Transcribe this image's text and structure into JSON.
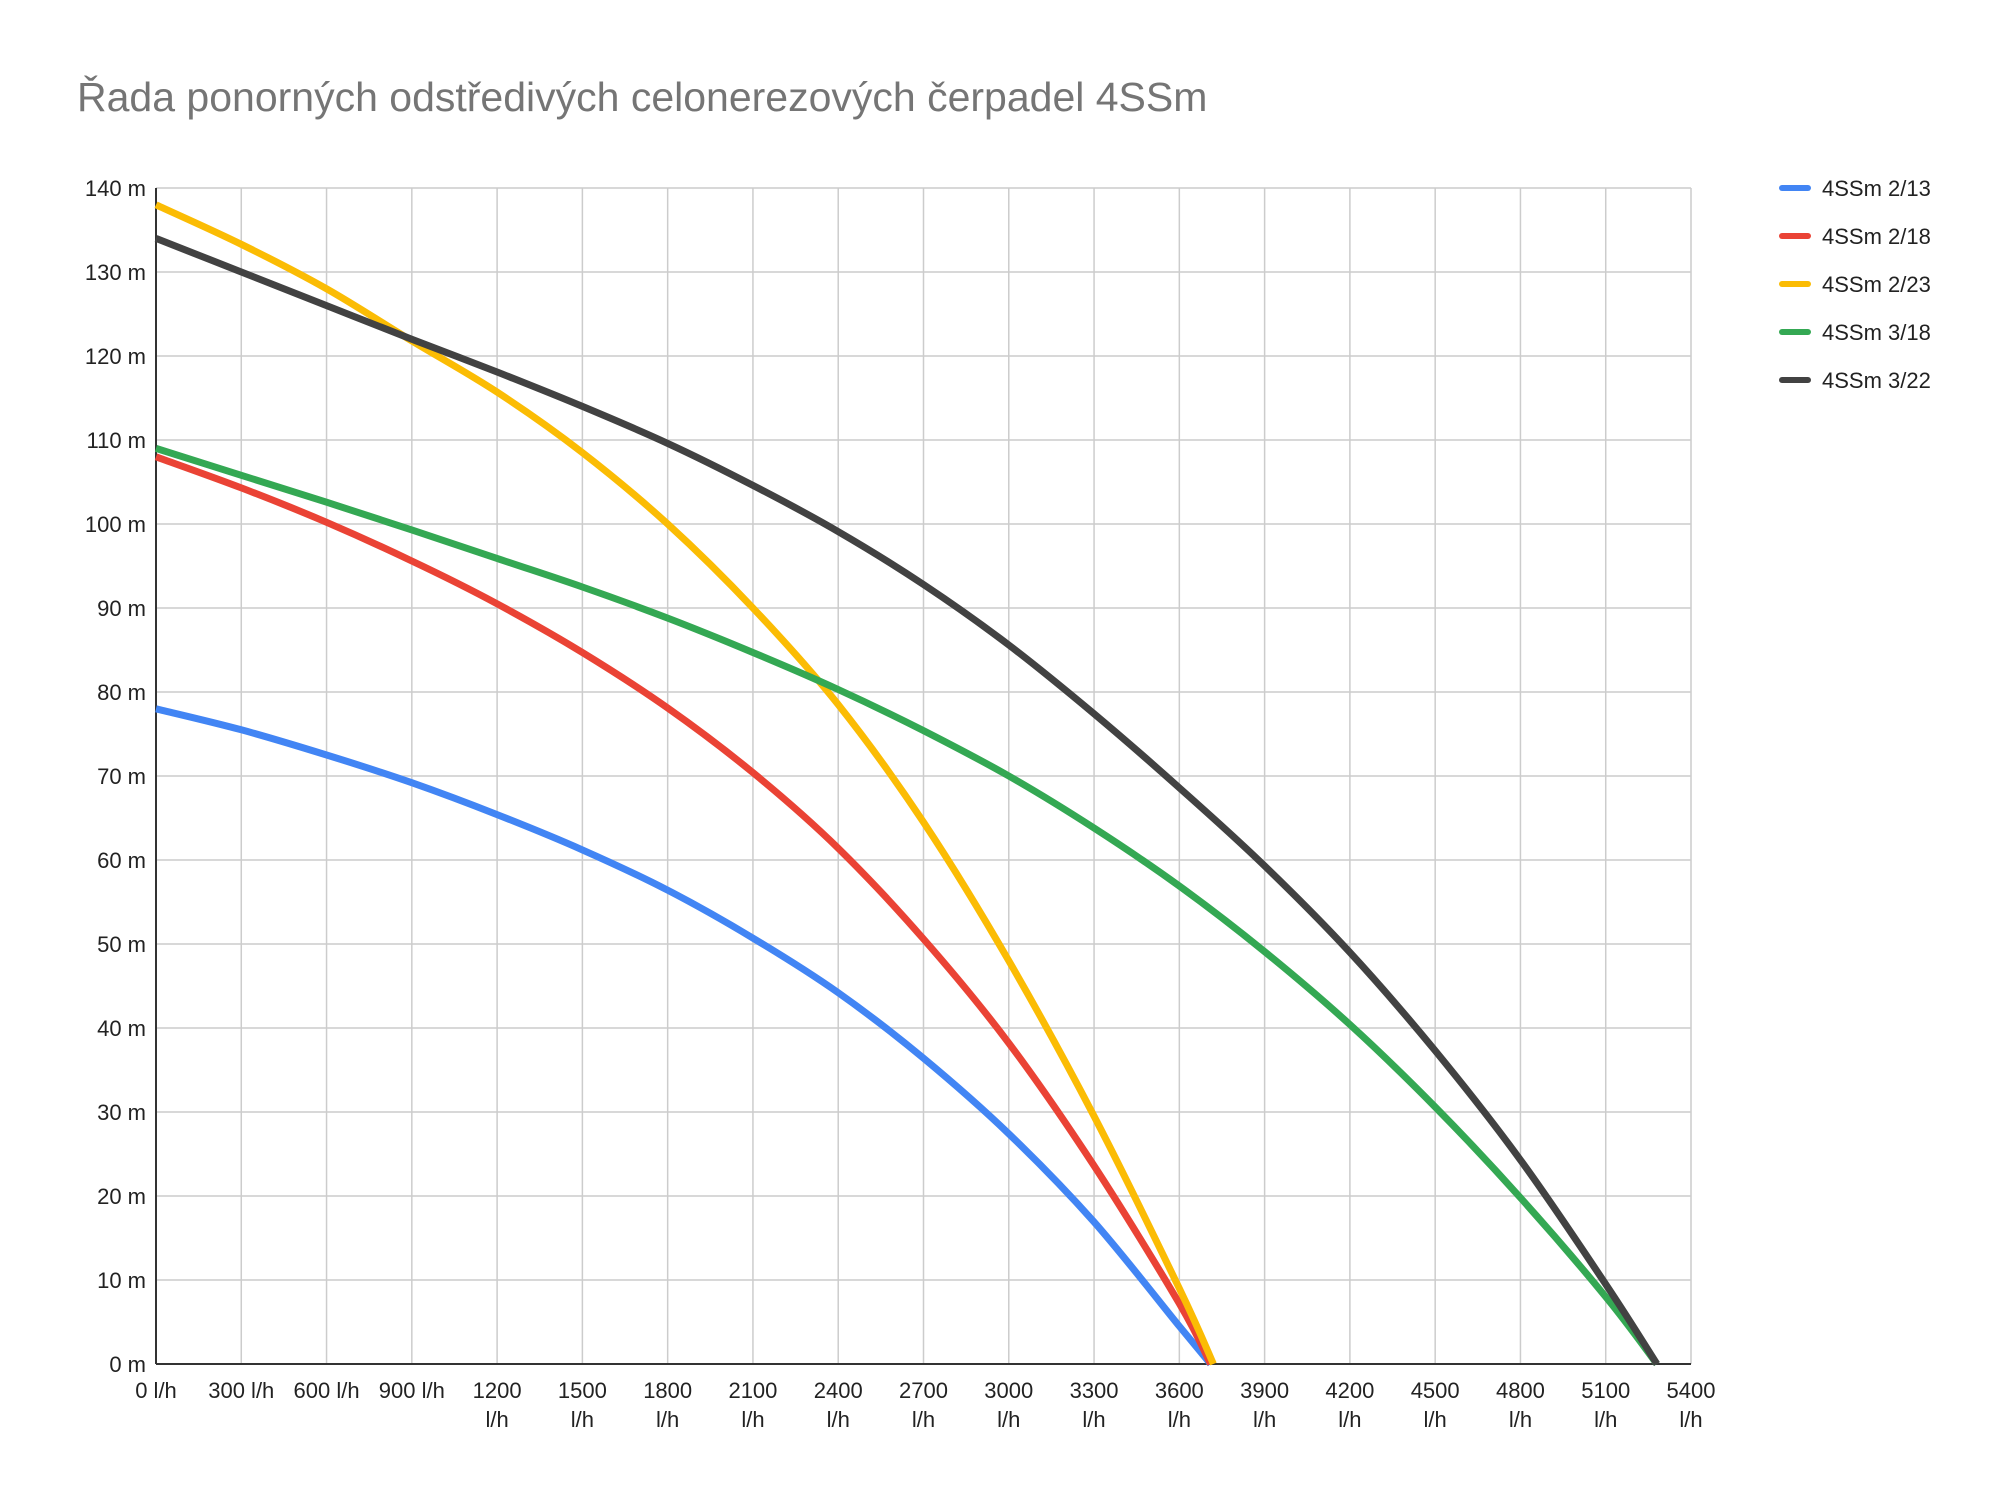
{
  "chart_data": {
    "type": "line",
    "title": "Řada ponorných odstředivých celonerezových čerpadel 4SSm",
    "xlabel": "",
    "ylabel": "",
    "xlim": [
      0,
      5400
    ],
    "ylim": [
      0,
      140
    ],
    "x_ticks": [
      {
        "value": 0,
        "lines": [
          "0 l/h"
        ]
      },
      {
        "value": 300,
        "lines": [
          "300 l/h"
        ]
      },
      {
        "value": 600,
        "lines": [
          "600 l/h"
        ]
      },
      {
        "value": 900,
        "lines": [
          "900 l/h"
        ]
      },
      {
        "value": 1200,
        "lines": [
          "1200",
          "l/h"
        ]
      },
      {
        "value": 1500,
        "lines": [
          "1500",
          "l/h"
        ]
      },
      {
        "value": 1800,
        "lines": [
          "1800",
          "l/h"
        ]
      },
      {
        "value": 2100,
        "lines": [
          "2100",
          "l/h"
        ]
      },
      {
        "value": 2400,
        "lines": [
          "2400",
          "l/h"
        ]
      },
      {
        "value": 2700,
        "lines": [
          "2700",
          "l/h"
        ]
      },
      {
        "value": 3000,
        "lines": [
          "3000",
          "l/h"
        ]
      },
      {
        "value": 3300,
        "lines": [
          "3300",
          "l/h"
        ]
      },
      {
        "value": 3600,
        "lines": [
          "3600",
          "l/h"
        ]
      },
      {
        "value": 3900,
        "lines": [
          "3900",
          "l/h"
        ]
      },
      {
        "value": 4200,
        "lines": [
          "4200",
          "l/h"
        ]
      },
      {
        "value": 4500,
        "lines": [
          "4500",
          "l/h"
        ]
      },
      {
        "value": 4800,
        "lines": [
          "4800",
          "l/h"
        ]
      },
      {
        "value": 5100,
        "lines": [
          "5100",
          "l/h"
        ]
      },
      {
        "value": 5400,
        "lines": [
          "5400",
          "l/h"
        ]
      }
    ],
    "y_ticks": [
      {
        "value": 0,
        "label": "0 m"
      },
      {
        "value": 10,
        "label": "10 m"
      },
      {
        "value": 20,
        "label": "20 m"
      },
      {
        "value": 30,
        "label": "30 m"
      },
      {
        "value": 40,
        "label": "40 m"
      },
      {
        "value": 50,
        "label": "50 m"
      },
      {
        "value": 60,
        "label": "60 m"
      },
      {
        "value": 70,
        "label": "70 m"
      },
      {
        "value": 80,
        "label": "80 m"
      },
      {
        "value": 90,
        "label": "90 m"
      },
      {
        "value": 100,
        "label": "100 m"
      },
      {
        "value": 110,
        "label": "110 m"
      },
      {
        "value": 120,
        "label": "120 m"
      },
      {
        "value": 130,
        "label": "130 m"
      },
      {
        "value": 140,
        "label": "140 m"
      }
    ],
    "grid": true,
    "legend_position": "right",
    "series": [
      {
        "name": "4SSm 2/13",
        "color": "#4285F4",
        "x": [
          0,
          300,
          600,
          900,
          1200,
          1500,
          1800,
          2100,
          2400,
          2700,
          3000,
          3300,
          3600,
          3710
        ],
        "y": [
          78,
          75.5,
          72.5,
          69.2,
          65.4,
          61.2,
          56.4,
          50.7,
          44.2,
          36.4,
          27.4,
          16.9,
          4.5,
          0
        ]
      },
      {
        "name": "4SSm 2/18",
        "color": "#EA4335",
        "x": [
          0,
          300,
          600,
          900,
          1200,
          1500,
          1800,
          2100,
          2400,
          2700,
          3000,
          3300,
          3600,
          3710
        ],
        "y": [
          108,
          104.3,
          100.2,
          95.6,
          90.5,
          84.7,
          78.1,
          70.4,
          61.4,
          50.6,
          38.2,
          23.6,
          7.2,
          0
        ]
      },
      {
        "name": "4SSm 2/23",
        "color": "#FBBC04",
        "x": [
          0,
          300,
          600,
          900,
          1200,
          1500,
          1800,
          2100,
          2400,
          2700,
          3000,
          3300,
          3600,
          3720
        ],
        "y": [
          138,
          133.3,
          128,
          121.8,
          115.7,
          108.5,
          100,
          90,
          78.5,
          64.5,
          48,
          29.5,
          9,
          0
        ]
      },
      {
        "name": "4SSm 3/18",
        "color": "#34A853",
        "x": [
          0,
          300,
          600,
          900,
          1200,
          1500,
          1800,
          2100,
          2400,
          2700,
          3000,
          3300,
          3600,
          3900,
          4200,
          4500,
          4800,
          5100,
          5280
        ],
        "y": [
          109,
          105.8,
          102.6,
          99.3,
          95.9,
          92.5,
          88.8,
          84.7,
          80.3,
          75.4,
          70,
          63.8,
          56.9,
          49.1,
          40.4,
          30.6,
          19.8,
          8,
          0
        ]
      },
      {
        "name": "4SSm 3/22",
        "color": "#424242",
        "x": [
          0,
          300,
          600,
          900,
          1200,
          1500,
          1800,
          2100,
          2400,
          2700,
          3000,
          3300,
          3600,
          3900,
          4200,
          4500,
          4800,
          5100,
          5280
        ],
        "y": [
          134,
          130,
          126,
          122,
          118.1,
          114,
          109.6,
          104.6,
          99.1,
          92.8,
          85.6,
          77.4,
          68.6,
          59.3,
          49,
          37.3,
          24.3,
          9.5,
          0
        ]
      }
    ]
  }
}
